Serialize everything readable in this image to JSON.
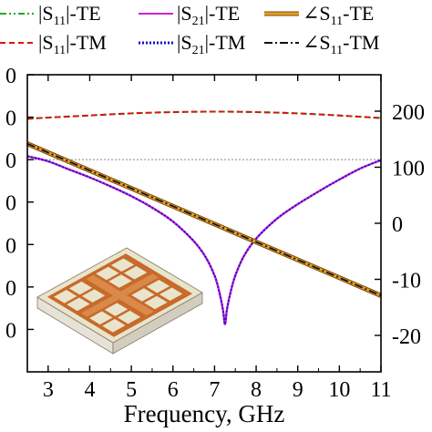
{
  "chart_data": {
    "type": "line",
    "title": "",
    "xlabel": "Frequency, GHz",
    "ylabel": "",
    "y2label": "",
    "xlim": [
      2.5,
      11
    ],
    "ylim": [
      -70,
      0
    ],
    "y2lim": [
      -265,
      265
    ],
    "x_ticks": [
      "3",
      "4",
      "5",
      "6",
      "7",
      "8",
      "9",
      "10",
      "11"
    ],
    "y_ticks_left": [
      "0",
      "0",
      "0",
      "0",
      "0",
      "0",
      "0"
    ],
    "y_ticks_right": [
      "200",
      "100",
      "0",
      "-10",
      "-20"
    ],
    "legend": {
      "placement": "top",
      "entries": [
        {
          "label_main": "|S",
          "sub": "11",
          "label_tail": "|-TE",
          "color": "#22aa22",
          "style": "dash-dot-dot"
        },
        {
          "label_main": "|S",
          "sub": "21",
          "label_tail": "|-TE",
          "color": "#cc22cc",
          "style": "solid"
        },
        {
          "label_main": "∠S",
          "sub": "11",
          "label_tail": "-TE",
          "color": "#e8a020",
          "style": "solid-thick"
        },
        {
          "label_main": "|S",
          "sub": "11",
          "label_tail": "|-TM",
          "color": "#dd1111",
          "style": "dash"
        },
        {
          "label_main": "|S",
          "sub": "21",
          "label_tail": "|-TM",
          "color": "#1111cc",
          "style": "dot"
        },
        {
          "label_main": "∠S",
          "sub": "11",
          "label_tail": "-TM",
          "color": "#111111",
          "style": "dash-dot"
        }
      ]
    },
    "reference_line": {
      "axis": "left",
      "y": -20,
      "color": "#888888"
    },
    "series": [
      {
        "name": "|S11|-TE",
        "axis": "left",
        "color": "#22aa22",
        "x": [
          2.5,
          3,
          4,
          5,
          6,
          7,
          8,
          9,
          10,
          11
        ],
        "y": [
          -10.4,
          -10.1,
          -9.6,
          -9.1,
          -8.8,
          -8.7,
          -8.8,
          -9.1,
          -9.6,
          -10.2
        ]
      },
      {
        "name": "|S11|-TM",
        "axis": "left",
        "color": "#dd1111",
        "x": [
          2.5,
          3,
          4,
          5,
          6,
          7,
          8,
          9,
          10,
          11
        ],
        "y": [
          -10.4,
          -10.1,
          -9.6,
          -9.1,
          -8.8,
          -8.7,
          -8.8,
          -9.1,
          -9.6,
          -10.2
        ]
      },
      {
        "name": "|S21|-TE",
        "axis": "left",
        "color": "#cc22cc",
        "x": [
          2.5,
          3,
          3.5,
          4,
          4.5,
          5,
          5.5,
          6,
          6.5,
          6.8,
          7,
          7.1,
          7.2,
          7.25,
          7.3,
          7.4,
          7.5,
          7.7,
          8,
          8.5,
          9,
          9.5,
          10,
          10.5,
          11
        ],
        "y": [
          -19.2,
          -20.4,
          -22.3,
          -24.2,
          -26.3,
          -28.6,
          -31.3,
          -34.6,
          -39.2,
          -43.2,
          -47.3,
          -50.6,
          -55.2,
          -58.8,
          -55.2,
          -50.6,
          -47.3,
          -42.8,
          -38.6,
          -33.9,
          -30.5,
          -27.5,
          -24.7,
          -22.1,
          -20.1
        ]
      },
      {
        "name": "|S21|-TM",
        "axis": "left",
        "color": "#1111cc",
        "x": [
          2.5,
          3,
          3.5,
          4,
          4.5,
          5,
          5.5,
          6,
          6.5,
          6.8,
          7,
          7.1,
          7.2,
          7.25,
          7.3,
          7.4,
          7.5,
          7.7,
          8,
          8.5,
          9,
          9.5,
          10,
          10.5,
          11
        ],
        "y": [
          -19.2,
          -20.4,
          -22.3,
          -24.2,
          -26.3,
          -28.6,
          -31.3,
          -34.6,
          -39.2,
          -43.2,
          -47.3,
          -50.6,
          -55.2,
          -58.8,
          -55.2,
          -50.6,
          -47.3,
          -42.8,
          -38.6,
          -33.9,
          -30.5,
          -27.5,
          -24.7,
          -22.1,
          -20.1
        ]
      },
      {
        "name": "∠S11-TE",
        "axis": "right",
        "color": "#e8a020",
        "x": [
          2.5,
          11
        ],
        "y": [
          142,
          -129
        ]
      },
      {
        "name": "∠S11-TM",
        "axis": "right",
        "color": "#111111",
        "x": [
          2.5,
          11
        ],
        "y": [
          142,
          -129
        ]
      }
    ]
  }
}
